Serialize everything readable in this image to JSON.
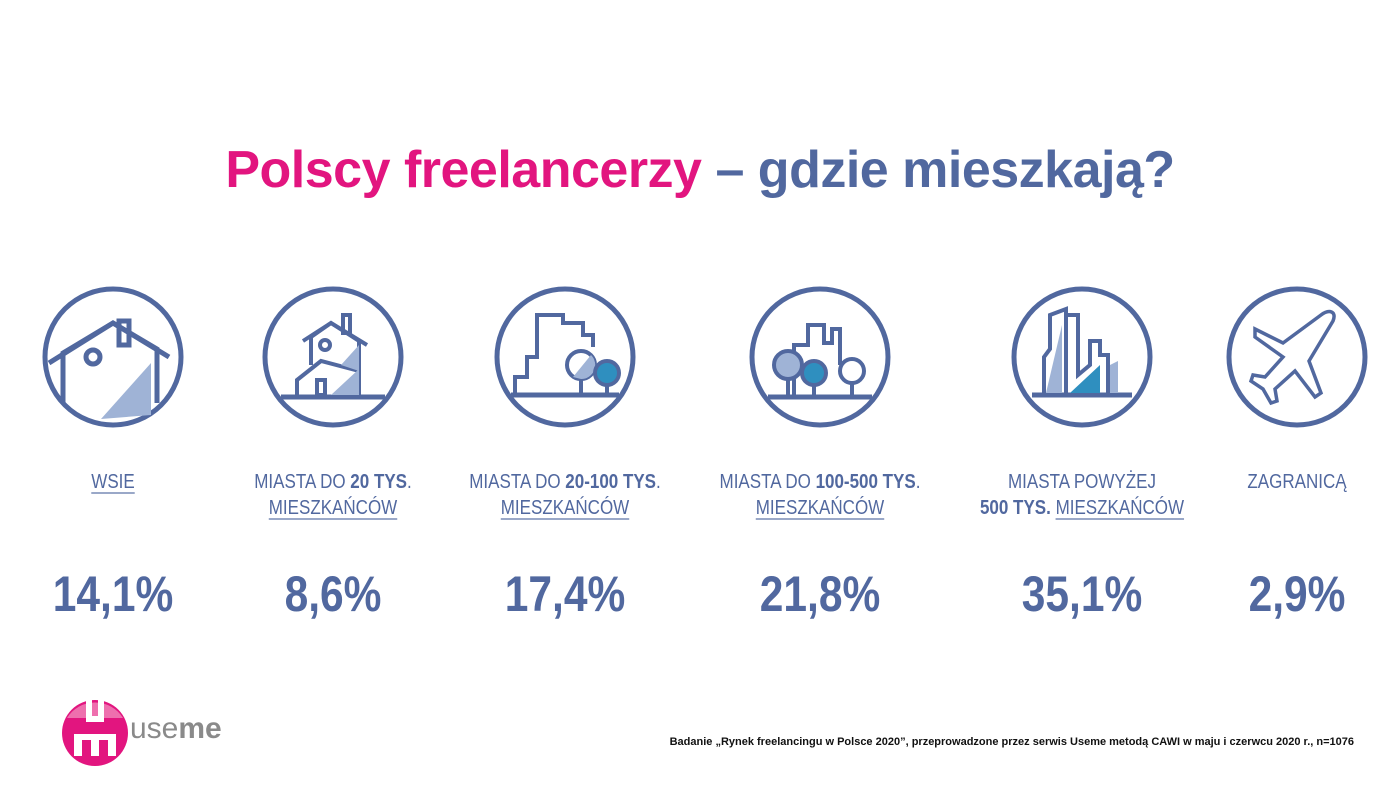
{
  "title": {
    "part1": "Polscy freelancerzy",
    "part2": "– gdzie mieszkają?"
  },
  "colors": {
    "pink": "#e2157f",
    "blue": "#51689f",
    "light_blue": "#9fb3d6",
    "teal": "#2f8fbf"
  },
  "categories": [
    {
      "icon": "house-icon",
      "line1_pre": "",
      "line1_bold": "",
      "line1_post": "",
      "line1_under": "WSIE",
      "line2_bold": "",
      "line2_under": "",
      "value": "14,1%"
    },
    {
      "icon": "small-town-house-icon",
      "line1_pre": "MIASTA DO ",
      "line1_bold": "20 TYS",
      "line1_post": ".",
      "line1_under": "",
      "line2_bold": "",
      "line2_under": "MIESZKAŃCÓW",
      "value": "8,6%"
    },
    {
      "icon": "town-building-icon",
      "line1_pre": "MIASTA DO ",
      "line1_bold": "20-100 TYS",
      "line1_post": ".",
      "line1_under": "",
      "line2_bold": "",
      "line2_under": "MIESZKAŃCÓW",
      "value": "17,4%"
    },
    {
      "icon": "city-trees-icon",
      "line1_pre": "MIASTA DO ",
      "line1_bold": "100-500 TYS",
      "line1_post": ".",
      "line1_under": "",
      "line2_bold": "",
      "line2_under": "MIESZKAŃCÓW",
      "value": "21,8%"
    },
    {
      "icon": "skyscrapers-icon",
      "line1_pre": "MIASTA POWYŻEJ",
      "line1_bold": "",
      "line1_post": "",
      "line1_under": "",
      "line2_bold": "500 TYS. ",
      "line2_under": "MIESZKAŃCÓW",
      "value": "35,1%"
    },
    {
      "icon": "airplane-icon",
      "line1_pre": "ZAGRANICĄ",
      "line1_bold": "",
      "line1_post": "",
      "line1_under": "",
      "line2_bold": "",
      "line2_under": "",
      "value": "2,9%"
    }
  ],
  "logo": {
    "text_light": "use",
    "text_bold": "me"
  },
  "footnote": "Badanie „Rynek freelancingu w Polsce 2020”, przeprowadzone przez serwis Useme metodą CAWI w maju i czerwcu 2020 r., n=1076"
}
